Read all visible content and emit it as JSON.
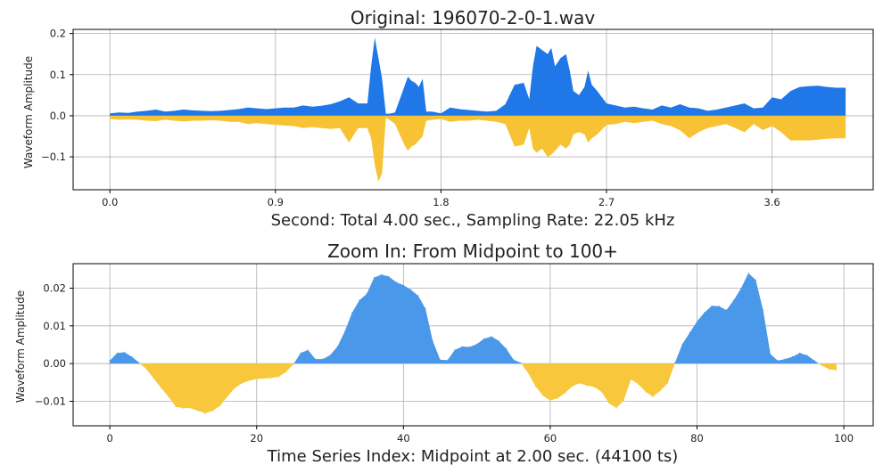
{
  "colors": {
    "positive": "#1f77e8",
    "negative": "#f7c233",
    "positive_zoom": "#4a98ea",
    "negative_zoom": "#f9c73c"
  },
  "chart_data": [
    {
      "type": "area",
      "title": "Original: 196070-2-0-1.wav",
      "xlabel": "Second: Total 4.00 sec., Sampling Rate: 22.05 kHz",
      "ylabel": "Waveform Amplitude",
      "xlim": [
        -0.2,
        4.15
      ],
      "ylim": [
        -0.18,
        0.21
      ],
      "x_ticks": [
        "0.0",
        "0.9",
        "1.8",
        "2.7",
        "3.6"
      ],
      "x_tick_values": [
        0,
        0.9,
        1.8,
        2.7,
        3.6
      ],
      "y_ticks": [
        "−0.1",
        "0.0",
        "0.1",
        "0.2"
      ],
      "y_tick_values": [
        -0.1,
        0,
        0.1,
        0.2
      ],
      "grid": true,
      "envelope_x": [
        0.0,
        0.05,
        0.1,
        0.15,
        0.2,
        0.25,
        0.3,
        0.35,
        0.4,
        0.45,
        0.5,
        0.55,
        0.6,
        0.65,
        0.7,
        0.75,
        0.8,
        0.85,
        0.9,
        0.95,
        1.0,
        1.05,
        1.1,
        1.15,
        1.2,
        1.25,
        1.3,
        1.35,
        1.4,
        1.42,
        1.44,
        1.46,
        1.48,
        1.5,
        1.52,
        1.55,
        1.6,
        1.62,
        1.64,
        1.66,
        1.68,
        1.7,
        1.72,
        1.75,
        1.8,
        1.85,
        1.9,
        1.95,
        2.0,
        2.05,
        2.1,
        2.15,
        2.2,
        2.25,
        2.28,
        2.3,
        2.32,
        2.35,
        2.38,
        2.4,
        2.42,
        2.45,
        2.48,
        2.5,
        2.52,
        2.55,
        2.58,
        2.6,
        2.62,
        2.65,
        2.7,
        2.75,
        2.8,
        2.85,
        2.9,
        2.95,
        3.0,
        3.05,
        3.1,
        3.15,
        3.2,
        3.25,
        3.3,
        3.35,
        3.4,
        3.45,
        3.5,
        3.55,
        3.6,
        3.65,
        3.7,
        3.75,
        3.8,
        3.85,
        3.9,
        3.95,
        4.0
      ],
      "upper": [
        0.006,
        0.008,
        0.007,
        0.01,
        0.012,
        0.015,
        0.01,
        0.012,
        0.015,
        0.013,
        0.012,
        0.011,
        0.012,
        0.014,
        0.016,
        0.02,
        0.018,
        0.016,
        0.018,
        0.02,
        0.02,
        0.025,
        0.022,
        0.024,
        0.028,
        0.035,
        0.045,
        0.03,
        0.03,
        0.12,
        0.19,
        0.14,
        0.09,
        0.005,
        0.005,
        0.008,
        0.07,
        0.095,
        0.085,
        0.08,
        0.07,
        0.09,
        0.01,
        0.01,
        0.006,
        0.02,
        0.016,
        0.014,
        0.012,
        0.01,
        0.012,
        0.028,
        0.075,
        0.08,
        0.04,
        0.12,
        0.17,
        0.16,
        0.15,
        0.165,
        0.12,
        0.14,
        0.15,
        0.11,
        0.06,
        0.05,
        0.07,
        0.11,
        0.075,
        0.06,
        0.03,
        0.025,
        0.02,
        0.022,
        0.018,
        0.015,
        0.025,
        0.02,
        0.028,
        0.02,
        0.018,
        0.012,
        0.015,
        0.02,
        0.025,
        0.03,
        0.018,
        0.02,
        0.045,
        0.04,
        0.06,
        0.07,
        0.072,
        0.073,
        0.07,
        0.068,
        0.068
      ],
      "lower": [
        -0.008,
        -0.01,
        -0.009,
        -0.01,
        -0.012,
        -0.013,
        -0.01,
        -0.012,
        -0.014,
        -0.012,
        -0.012,
        -0.011,
        -0.012,
        -0.015,
        -0.015,
        -0.02,
        -0.018,
        -0.02,
        -0.022,
        -0.024,
        -0.025,
        -0.03,
        -0.028,
        -0.03,
        -0.032,
        -0.03,
        -0.065,
        -0.03,
        -0.03,
        -0.055,
        -0.12,
        -0.16,
        -0.14,
        -0.005,
        -0.01,
        -0.02,
        -0.07,
        -0.085,
        -0.075,
        -0.07,
        -0.06,
        -0.05,
        -0.012,
        -0.01,
        -0.008,
        -0.015,
        -0.012,
        -0.012,
        -0.01,
        -0.012,
        -0.015,
        -0.02,
        -0.075,
        -0.07,
        -0.03,
        -0.08,
        -0.09,
        -0.08,
        -0.1,
        -0.095,
        -0.085,
        -0.07,
        -0.08,
        -0.07,
        -0.045,
        -0.04,
        -0.045,
        -0.065,
        -0.055,
        -0.045,
        -0.022,
        -0.02,
        -0.015,
        -0.018,
        -0.015,
        -0.012,
        -0.02,
        -0.025,
        -0.035,
        -0.055,
        -0.04,
        -0.03,
        -0.025,
        -0.02,
        -0.03,
        -0.04,
        -0.02,
        -0.035,
        -0.025,
        -0.04,
        -0.06,
        -0.06,
        -0.06,
        -0.058,
        -0.056,
        -0.055,
        -0.055
      ]
    },
    {
      "type": "area",
      "title": "Zoom In: From Midpoint to 100+",
      "xlabel": "Time Series Index: Midpoint at 2.00 sec. (44100 ts)",
      "ylabel": "Waveform Amplitude",
      "xlim": [
        -5,
        104
      ],
      "ylim": [
        -0.0165,
        0.0265
      ],
      "x_ticks": [
        "0",
        "20",
        "40",
        "60",
        "80",
        "100"
      ],
      "x_tick_values": [
        0,
        20,
        40,
        60,
        80,
        100
      ],
      "y_ticks": [
        "−0.01",
        "0.00",
        "0.01",
        "0.02"
      ],
      "y_tick_values": [
        -0.01,
        0,
        0.01,
        0.02
      ],
      "grid": true,
      "x": [
        0,
        1,
        2,
        3,
        4,
        5,
        6,
        7,
        8,
        9,
        10,
        11,
        12,
        13,
        14,
        15,
        16,
        17,
        18,
        19,
        20,
        21,
        22,
        23,
        24,
        25,
        26,
        27,
        28,
        29,
        30,
        31,
        32,
        33,
        34,
        35,
        36,
        37,
        38,
        39,
        40,
        41,
        42,
        43,
        44,
        45,
        46,
        47,
        48,
        49,
        50,
        51,
        52,
        53,
        54,
        55,
        56,
        57,
        58,
        59,
        60,
        61,
        62,
        63,
        64,
        65,
        66,
        67,
        68,
        69,
        70,
        71,
        72,
        73,
        74,
        75,
        76,
        77,
        78,
        79,
        80,
        81,
        82,
        83,
        84,
        85,
        86,
        87,
        88,
        89,
        90,
        91,
        92,
        93,
        94,
        95,
        96,
        97,
        98,
        99
      ],
      "y": [
        0.0008,
        0.0028,
        0.003,
        0.0018,
        0.0002,
        -0.0015,
        -0.004,
        -0.0065,
        -0.0088,
        -0.0115,
        -0.0118,
        -0.0118,
        -0.0125,
        -0.0132,
        -0.0125,
        -0.0112,
        -0.0088,
        -0.0065,
        -0.0052,
        -0.0045,
        -0.0041,
        -0.0039,
        -0.0038,
        -0.0035,
        -0.0022,
        -0.0002,
        0.0028,
        0.0036,
        0.0012,
        0.0012,
        0.0022,
        0.0045,
        0.0085,
        0.0135,
        0.0168,
        0.0185,
        0.0228,
        0.0236,
        0.0231,
        0.0216,
        0.0208,
        0.0196,
        0.018,
        0.0146,
        0.006,
        0.001,
        0.0009,
        0.0036,
        0.0045,
        0.0044,
        0.0052,
        0.0066,
        0.0072,
        0.006,
        0.004,
        0.001,
        0.0002,
        -0.0025,
        -0.006,
        -0.0085,
        -0.0098,
        -0.0092,
        -0.0078,
        -0.006,
        -0.0052,
        -0.0058,
        -0.0062,
        -0.0075,
        -0.0105,
        -0.0118,
        -0.0098,
        -0.0042,
        -0.0055,
        -0.0075,
        -0.0088,
        -0.0072,
        -0.0052,
        0.0002,
        0.0052,
        0.0082,
        0.0112,
        0.0135,
        0.0153,
        0.0152,
        0.0142,
        0.0168,
        0.02,
        0.024,
        0.0222,
        0.0142,
        0.0025,
        0.0008,
        0.0012,
        0.0018,
        0.0028,
        0.0022,
        0.0008,
        -0.0005,
        -0.0015,
        -0.0018
      ]
    }
  ]
}
